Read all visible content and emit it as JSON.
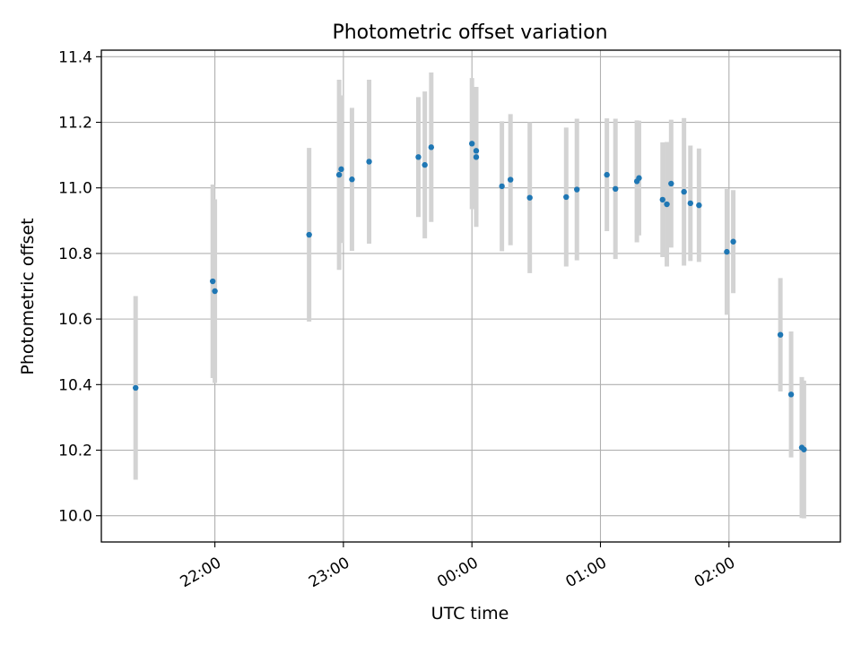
{
  "chart_data": {
    "type": "scatter",
    "title": "Photometric offset variation",
    "xlabel": "UTC time",
    "ylabel": "Photometric offset",
    "x_format": "HH:MM",
    "xlim": [
      "21:07",
      "02:52"
    ],
    "ylim": [
      9.92,
      11.42
    ],
    "grid": true,
    "x_ticks": [
      "22:00",
      "23:00",
      "00:00",
      "01:00",
      "02:00"
    ],
    "y_ticks": [
      "10.0",
      "10.2",
      "10.4",
      "10.6",
      "10.8",
      "11.0",
      "11.2",
      "11.4"
    ],
    "colors": {
      "point": "#1f77b4",
      "errorbar": "#d3d3d3",
      "grid": "#b0b0b0",
      "axes": "#000000"
    },
    "series": [
      {
        "points": [
          {
            "x": "21:23",
            "y": 10.39,
            "err": 0.28
          },
          {
            "x": "21:59",
            "y": 10.715,
            "err": 0.295
          },
          {
            "x": "22:00",
            "y": 10.685,
            "err": 0.28
          },
          {
            "x": "22:44",
            "y": 10.857,
            "err": 0.265
          },
          {
            "x": "22:58",
            "y": 11.04,
            "err": 0.29
          },
          {
            "x": "22:59",
            "y": 11.057,
            "err": 0.225
          },
          {
            "x": "23:04",
            "y": 11.026,
            "err": 0.218
          },
          {
            "x": "23:12",
            "y": 11.08,
            "err": 0.25
          },
          {
            "x": "23:35",
            "y": 11.094,
            "err": 0.183
          },
          {
            "x": "23:38",
            "y": 11.07,
            "err": 0.224
          },
          {
            "x": "23:41",
            "y": 11.124,
            "err": 0.228
          },
          {
            "x": "00:00",
            "y": 11.135,
            "err": 0.2
          },
          {
            "x": "00:02",
            "y": 11.113,
            "err": 0.195
          },
          {
            "x": "00:02",
            "y": 11.094,
            "err": 0.213
          },
          {
            "x": "00:14",
            "y": 11.005,
            "err": 0.198
          },
          {
            "x": "00:18",
            "y": 11.025,
            "err": 0.2
          },
          {
            "x": "00:27",
            "y": 10.97,
            "err": 0.23
          },
          {
            "x": "00:44",
            "y": 10.972,
            "err": 0.212
          },
          {
            "x": "00:49",
            "y": 10.995,
            "err": 0.216
          },
          {
            "x": "01:03",
            "y": 11.04,
            "err": 0.172
          },
          {
            "x": "01:07",
            "y": 10.997,
            "err": 0.214
          },
          {
            "x": "01:17",
            "y": 11.02,
            "err": 0.186
          },
          {
            "x": "01:18",
            "y": 11.03,
            "err": 0.175
          },
          {
            "x": "01:29",
            "y": 10.964,
            "err": 0.175
          },
          {
            "x": "01:31",
            "y": 10.95,
            "err": 0.19
          },
          {
            "x": "01:33",
            "y": 11.013,
            "err": 0.195
          },
          {
            "x": "01:39",
            "y": 10.988,
            "err": 0.225
          },
          {
            "x": "01:42",
            "y": 10.953,
            "err": 0.176
          },
          {
            "x": "01:46",
            "y": 10.947,
            "err": 0.173
          },
          {
            "x": "01:59",
            "y": 10.805,
            "err": 0.192
          },
          {
            "x": "02:02",
            "y": 10.836,
            "err": 0.157
          },
          {
            "x": "02:24",
            "y": 10.552,
            "err": 0.173
          },
          {
            "x": "02:29",
            "y": 10.37,
            "err": 0.192
          },
          {
            "x": "02:34",
            "y": 10.208,
            "err": 0.215
          },
          {
            "x": "02:35",
            "y": 10.202,
            "err": 0.21
          }
        ]
      }
    ]
  }
}
